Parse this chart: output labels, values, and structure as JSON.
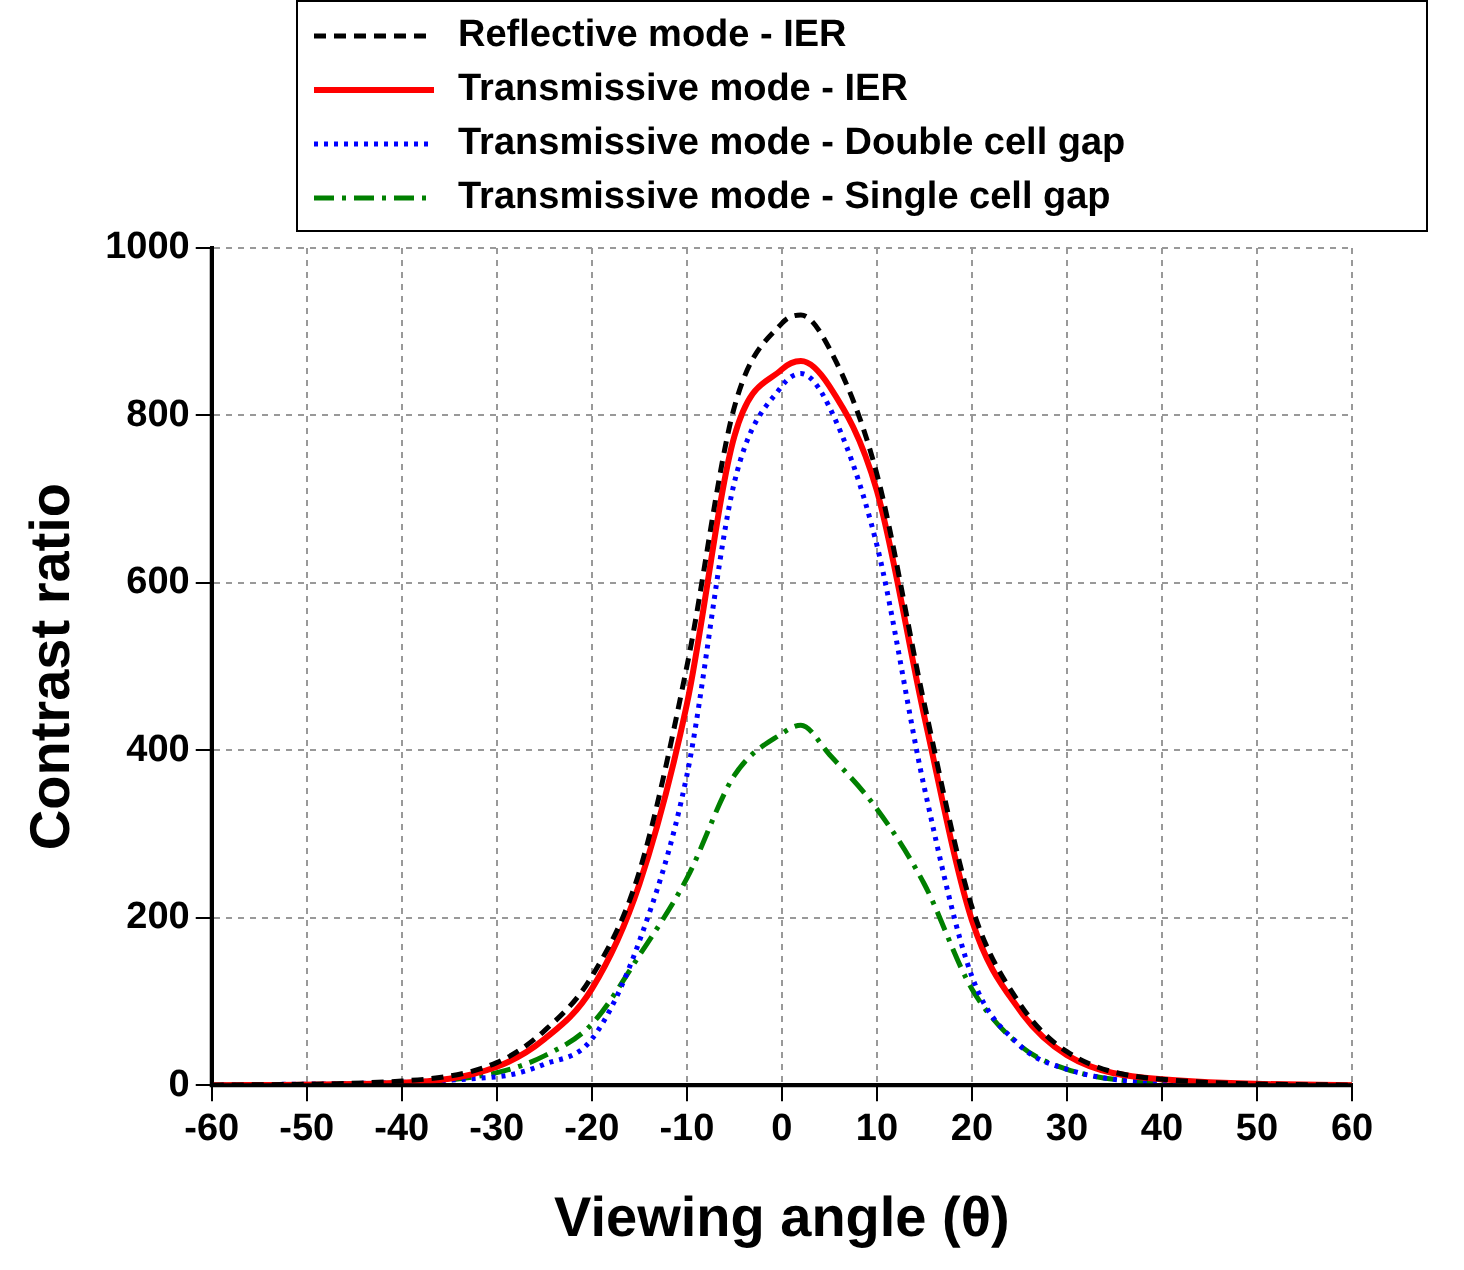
{
  "chart_data": {
    "type": "line",
    "xlabel": "Viewing angle (θ)",
    "ylabel": "Contrast ratio",
    "x": [
      -60,
      -40,
      -30,
      -25,
      -20,
      -15,
      -10,
      -5,
      0,
      2,
      5,
      10,
      15,
      20,
      25,
      30,
      40,
      60
    ],
    "series": [
      {
        "name": "Reflective mode - IER",
        "color": "#000000",
        "line_style": "dashed",
        "values": [
          0,
          5,
          27,
          65,
          130,
          255,
          500,
          810,
          910,
          920,
          880,
          730,
          455,
          213,
          98,
          40,
          7,
          0
        ]
      },
      {
        "name": "Transmissive mode - IER",
        "color": "#ff0000",
        "line_style": "solid",
        "values": [
          0,
          3,
          22,
          55,
          115,
          240,
          455,
          775,
          855,
          865,
          835,
          710,
          440,
          197,
          90,
          36,
          7,
          0
        ]
      },
      {
        "name": "Transmissive mode - Double cell gap",
        "color": "#0000ff",
        "line_style": "dotted",
        "values": [
          0,
          null,
          10,
          25,
          55,
          172,
          370,
          720,
          835,
          850,
          810,
          645,
          355,
          130,
          48,
          19,
          3,
          0
        ]
      },
      {
        "name": "Transmissive mode - Single cell gap",
        "color": "#008000",
        "line_style": "dashdot",
        "values": [
          0,
          3,
          15,
          35,
          73,
          155,
          247,
          370,
          420,
          430,
          395,
          330,
          240,
          115,
          48,
          19,
          3,
          0
        ]
      }
    ],
    "xlim": [
      -60,
      60
    ],
    "xticks": [
      -60,
      -50,
      -40,
      -30,
      -20,
      -10,
      0,
      10,
      20,
      30,
      40,
      50,
      60
    ],
    "ylim": [
      0,
      1000
    ],
    "yticks": [
      0,
      200,
      400,
      600,
      800,
      1000
    ],
    "grid": true,
    "legend": "top",
    "marker": "none"
  }
}
